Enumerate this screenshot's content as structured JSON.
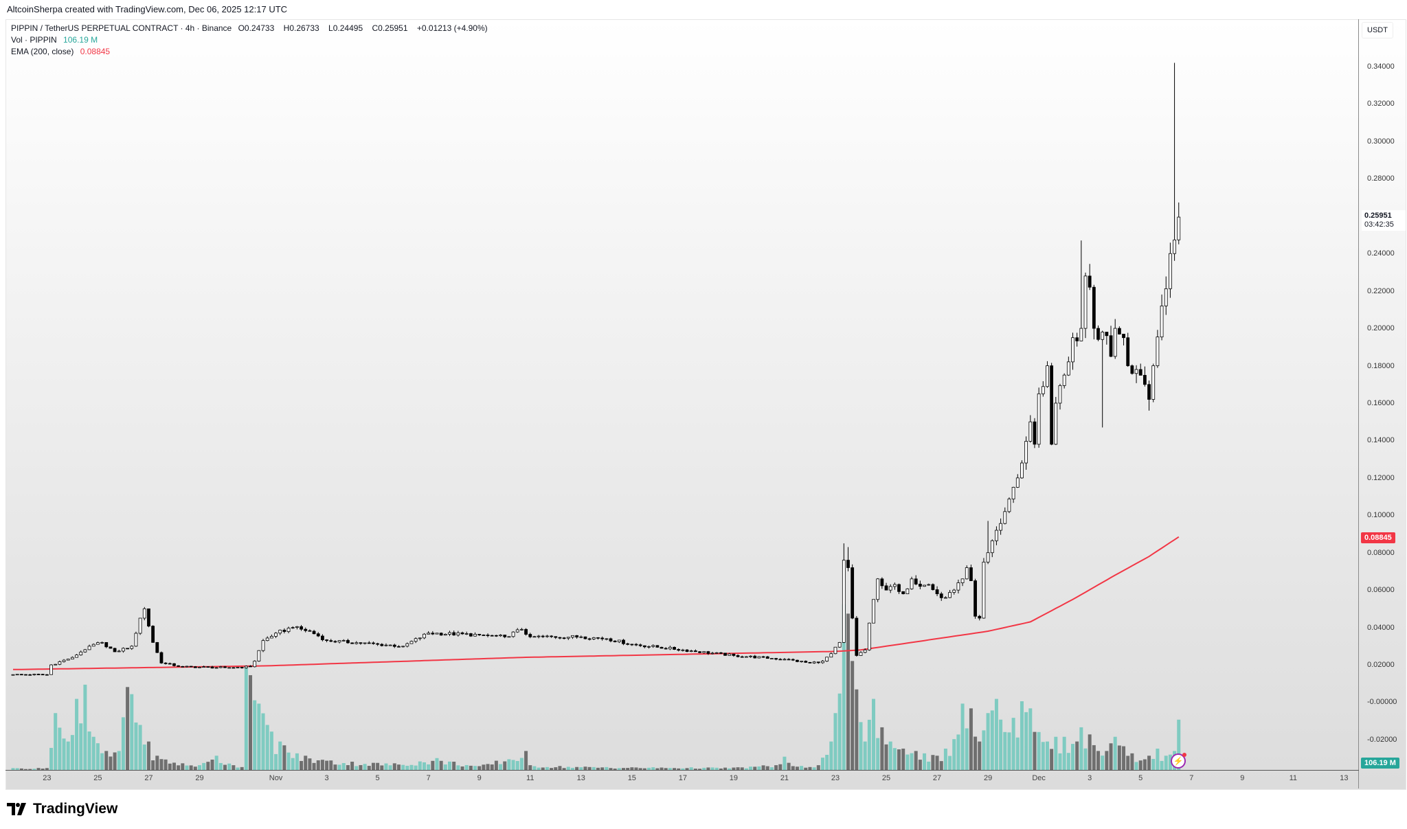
{
  "attribution": "AltcoinSherpa created with TradingView.com, Dec 06, 2025 12:17 UTC",
  "legend": {
    "symbol": "PIPPIN / TetherUS PERPETUAL CONTRACT · 4h · Binance",
    "o_label": "O",
    "o": "0.24733",
    "h_label": "H",
    "h": "0.26733",
    "l_label": "L",
    "l": "0.24495",
    "c_label": "C",
    "c": "0.25951",
    "change": "+0.01213 (+4.90%)",
    "vol_label": "Vol · PIPPIN",
    "vol_value": "106.19 M",
    "ema_label": "EMA (200, close)",
    "ema_value": "0.08845"
  },
  "price_axis": {
    "currency": "USDT",
    "ticks": [
      "0.34000",
      "0.32000",
      "0.30000",
      "0.28000",
      "0.24000",
      "0.22000",
      "0.20000",
      "0.18000",
      "0.16000",
      "0.14000",
      "0.12000",
      "0.10000",
      "0.08000",
      "0.06000",
      "0.04000",
      "0.02000",
      "-0.00000",
      "-0.02000"
    ],
    "current_price": "0.25951",
    "countdown": "03:42:35",
    "ema_badge": "0.08845",
    "volume_badge": "106.19 M"
  },
  "time_axis": [
    {
      "label": "23",
      "candle": 8
    },
    {
      "label": "25",
      "candle": 20
    },
    {
      "label": "27",
      "candle": 32
    },
    {
      "label": "29",
      "candle": 44
    },
    {
      "label": "Nov",
      "candle": 62
    },
    {
      "label": "3",
      "candle": 74
    },
    {
      "label": "5",
      "candle": 86
    },
    {
      "label": "7",
      "candle": 98
    },
    {
      "label": "9",
      "candle": 110
    },
    {
      "label": "11",
      "candle": 122
    },
    {
      "label": "13",
      "candle": 134
    },
    {
      "label": "15",
      "candle": 146
    },
    {
      "label": "17",
      "candle": 158
    },
    {
      "label": "19",
      "candle": 170
    },
    {
      "label": "21",
      "candle": 182
    },
    {
      "label": "23",
      "candle": 194
    },
    {
      "label": "25",
      "candle": 206
    },
    {
      "label": "27",
      "candle": 218
    },
    {
      "label": "29",
      "candle": 230
    },
    {
      "label": "Dec",
      "candle": 242
    },
    {
      "label": "3",
      "candle": 254
    },
    {
      "label": "5",
      "candle": 266
    },
    {
      "label": "7",
      "candle": 278
    },
    {
      "label": "9",
      "candle": 290
    },
    {
      "label": "11",
      "candle": 302
    },
    {
      "label": "13",
      "candle": 314
    }
  ],
  "brand": "TradingView",
  "colors": {
    "up_fill": "#ffffff",
    "down_fill": "#000000",
    "ema": "#f23645",
    "vol_up": "#7fcbc1",
    "vol_down": "#6f6f6f",
    "vol_badge": "#26a69a"
  },
  "chart_data": {
    "type": "candlestick",
    "interval": "4h",
    "candle_count": 276,
    "close_keypoints": [
      [
        0,
        0.0148
      ],
      [
        8,
        0.0148
      ],
      [
        9,
        0.02
      ],
      [
        14,
        0.024
      ],
      [
        18,
        0.03
      ],
      [
        21,
        0.032
      ],
      [
        24,
        0.027
      ],
      [
        28,
        0.03
      ],
      [
        30,
        0.045
      ],
      [
        31,
        0.05
      ],
      [
        33,
        0.032
      ],
      [
        35,
        0.021
      ],
      [
        40,
        0.019
      ],
      [
        50,
        0.0185
      ],
      [
        56,
        0.019
      ],
      [
        57,
        0.022
      ],
      [
        59,
        0.033
      ],
      [
        62,
        0.037
      ],
      [
        66,
        0.04
      ],
      [
        70,
        0.038
      ],
      [
        74,
        0.033
      ],
      [
        86,
        0.031
      ],
      [
        92,
        0.03
      ],
      [
        98,
        0.037
      ],
      [
        110,
        0.036
      ],
      [
        116,
        0.035
      ],
      [
        120,
        0.039
      ],
      [
        122,
        0.035
      ],
      [
        134,
        0.035
      ],
      [
        140,
        0.034
      ],
      [
        146,
        0.031
      ],
      [
        158,
        0.028
      ],
      [
        170,
        0.025
      ],
      [
        182,
        0.023
      ],
      [
        188,
        0.021
      ],
      [
        191,
        0.022
      ],
      [
        193,
        0.026
      ],
      [
        195,
        0.032
      ],
      [
        196,
        0.076
      ],
      [
        197,
        0.072
      ],
      [
        198,
        0.045
      ],
      [
        199,
        0.025
      ],
      [
        201,
        0.028
      ],
      [
        203,
        0.055
      ],
      [
        204,
        0.066
      ],
      [
        206,
        0.06
      ],
      [
        208,
        0.063
      ],
      [
        210,
        0.058
      ],
      [
        212,
        0.066
      ],
      [
        214,
        0.062
      ],
      [
        216,
        0.063
      ],
      [
        218,
        0.058
      ],
      [
        220,
        0.056
      ],
      [
        222,
        0.06
      ],
      [
        224,
        0.066
      ],
      [
        225,
        0.072
      ],
      [
        226,
        0.065
      ],
      [
        227,
        0.046
      ],
      [
        228,
        0.045
      ],
      [
        229,
        0.075
      ],
      [
        230,
        0.08
      ],
      [
        232,
        0.092
      ],
      [
        234,
        0.102
      ],
      [
        236,
        0.115
      ],
      [
        238,
        0.128
      ],
      [
        240,
        0.15
      ],
      [
        241,
        0.138
      ],
      [
        242,
        0.165
      ],
      [
        244,
        0.18
      ],
      [
        245,
        0.138
      ],
      [
        246,
        0.16
      ],
      [
        248,
        0.175
      ],
      [
        250,
        0.195
      ],
      [
        252,
        0.2
      ],
      [
        253,
        0.228
      ],
      [
        254,
        0.222
      ],
      [
        255,
        0.2
      ],
      [
        257,
        0.198
      ],
      [
        259,
        0.185
      ],
      [
        260,
        0.2
      ],
      [
        262,
        0.195
      ],
      [
        263,
        0.18
      ],
      [
        265,
        0.178
      ],
      [
        267,
        0.17
      ],
      [
        268,
        0.162
      ],
      [
        269,
        0.18
      ],
      [
        271,
        0.212
      ],
      [
        273,
        0.24
      ],
      [
        274,
        0.2473
      ],
      [
        275,
        0.25951
      ]
    ],
    "overrides": {
      "196": {
        "h": 0.085
      },
      "197": {
        "h": 0.083
      },
      "230": {
        "h": 0.097
      },
      "252": {
        "h": 0.247
      },
      "257": {
        "l": 0.147
      },
      "268": {
        "l": 0.156
      },
      "274": {
        "h": 0.342
      },
      "275": {
        "o": 0.24733,
        "h": 0.26733,
        "l": 0.24495,
        "c": 0.25951
      }
    },
    "ema_keypoints": [
      [
        0,
        0.0175
      ],
      [
        60,
        0.0195
      ],
      [
        120,
        0.024
      ],
      [
        194,
        0.0272
      ],
      [
        200,
        0.028
      ],
      [
        215,
        0.033
      ],
      [
        230,
        0.038
      ],
      [
        240,
        0.043
      ],
      [
        250,
        0.055
      ],
      [
        260,
        0.068
      ],
      [
        268,
        0.078
      ],
      [
        275,
        0.08845
      ]
    ],
    "volume_keypoints_m": [
      [
        0,
        4
      ],
      [
        8,
        4
      ],
      [
        10,
        120
      ],
      [
        13,
        60
      ],
      [
        15,
        150
      ],
      [
        17,
        180
      ],
      [
        19,
        70
      ],
      [
        22,
        40
      ],
      [
        25,
        40
      ],
      [
        27,
        175
      ],
      [
        28,
        160
      ],
      [
        30,
        95
      ],
      [
        32,
        60
      ],
      [
        34,
        30
      ],
      [
        40,
        14
      ],
      [
        44,
        10
      ],
      [
        48,
        30
      ],
      [
        52,
        10
      ],
      [
        54,
        6
      ],
      [
        55,
        220
      ],
      [
        56,
        200
      ],
      [
        58,
        140
      ],
      [
        60,
        95
      ],
      [
        63,
        60
      ],
      [
        67,
        35
      ],
      [
        75,
        20
      ],
      [
        90,
        14
      ],
      [
        100,
        25
      ],
      [
        110,
        8
      ],
      [
        121,
        40
      ],
      [
        122,
        10
      ],
      [
        140,
        6
      ],
      [
        170,
        5
      ],
      [
        181,
        12
      ],
      [
        182,
        28
      ],
      [
        184,
        8
      ],
      [
        190,
        10
      ],
      [
        193,
        60
      ],
      [
        194,
        120
      ],
      [
        196,
        350
      ],
      [
        197,
        330
      ],
      [
        198,
        230
      ],
      [
        199,
        170
      ],
      [
        201,
        60
      ],
      [
        203,
        150
      ],
      [
        205,
        90
      ],
      [
        207,
        60
      ],
      [
        210,
        45
      ],
      [
        213,
        40
      ],
      [
        215,
        35
      ],
      [
        218,
        30
      ],
      [
        220,
        45
      ],
      [
        222,
        65
      ],
      [
        224,
        140
      ],
      [
        226,
        130
      ],
      [
        228,
        60
      ],
      [
        230,
        120
      ],
      [
        232,
        150
      ],
      [
        234,
        80
      ],
      [
        236,
        110
      ],
      [
        238,
        145
      ],
      [
        240,
        130
      ],
      [
        242,
        80
      ],
      [
        244,
        60
      ],
      [
        246,
        70
      ],
      [
        248,
        70
      ],
      [
        250,
        55
      ],
      [
        252,
        90
      ],
      [
        254,
        75
      ],
      [
        256,
        40
      ],
      [
        258,
        40
      ],
      [
        260,
        70
      ],
      [
        262,
        50
      ],
      [
        264,
        35
      ],
      [
        266,
        20
      ],
      [
        268,
        30
      ],
      [
        270,
        45
      ],
      [
        272,
        30
      ],
      [
        274,
        40
      ],
      [
        275,
        106.19
      ]
    ]
  }
}
